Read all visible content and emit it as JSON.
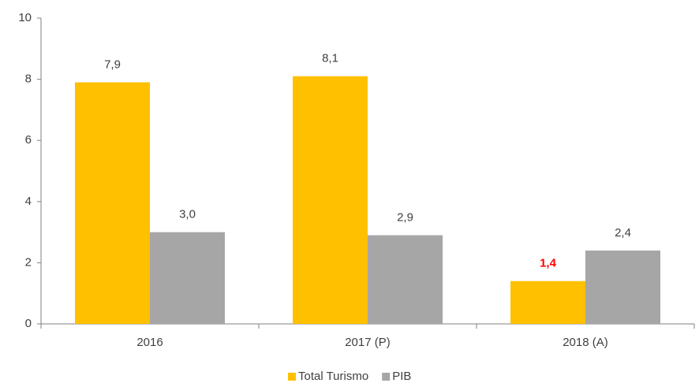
{
  "chart_data": {
    "type": "bar",
    "categories": [
      "2016",
      "2017 (P)",
      "2018 (A)"
    ],
    "series": [
      {
        "name": "Total Turismo",
        "color": "#ffc000",
        "values": [
          7.9,
          8.1,
          1.4
        ],
        "value_labels": [
          "7,9",
          "8,1",
          "1,4"
        ],
        "label_colors": [
          "#404040",
          "#404040",
          "#ff0000"
        ]
      },
      {
        "name": "PIB",
        "color": "#a6a6a6",
        "values": [
          3.0,
          2.9,
          2.4
        ],
        "value_labels": [
          "3,0",
          "2,9",
          "2,4"
        ],
        "label_colors": [
          "#404040",
          "#404040",
          "#404040"
        ]
      }
    ],
    "ylim": [
      0,
      10
    ],
    "yticks": [
      0,
      2,
      4,
      6,
      8,
      10
    ],
    "grid": false,
    "legend": "bottom"
  }
}
